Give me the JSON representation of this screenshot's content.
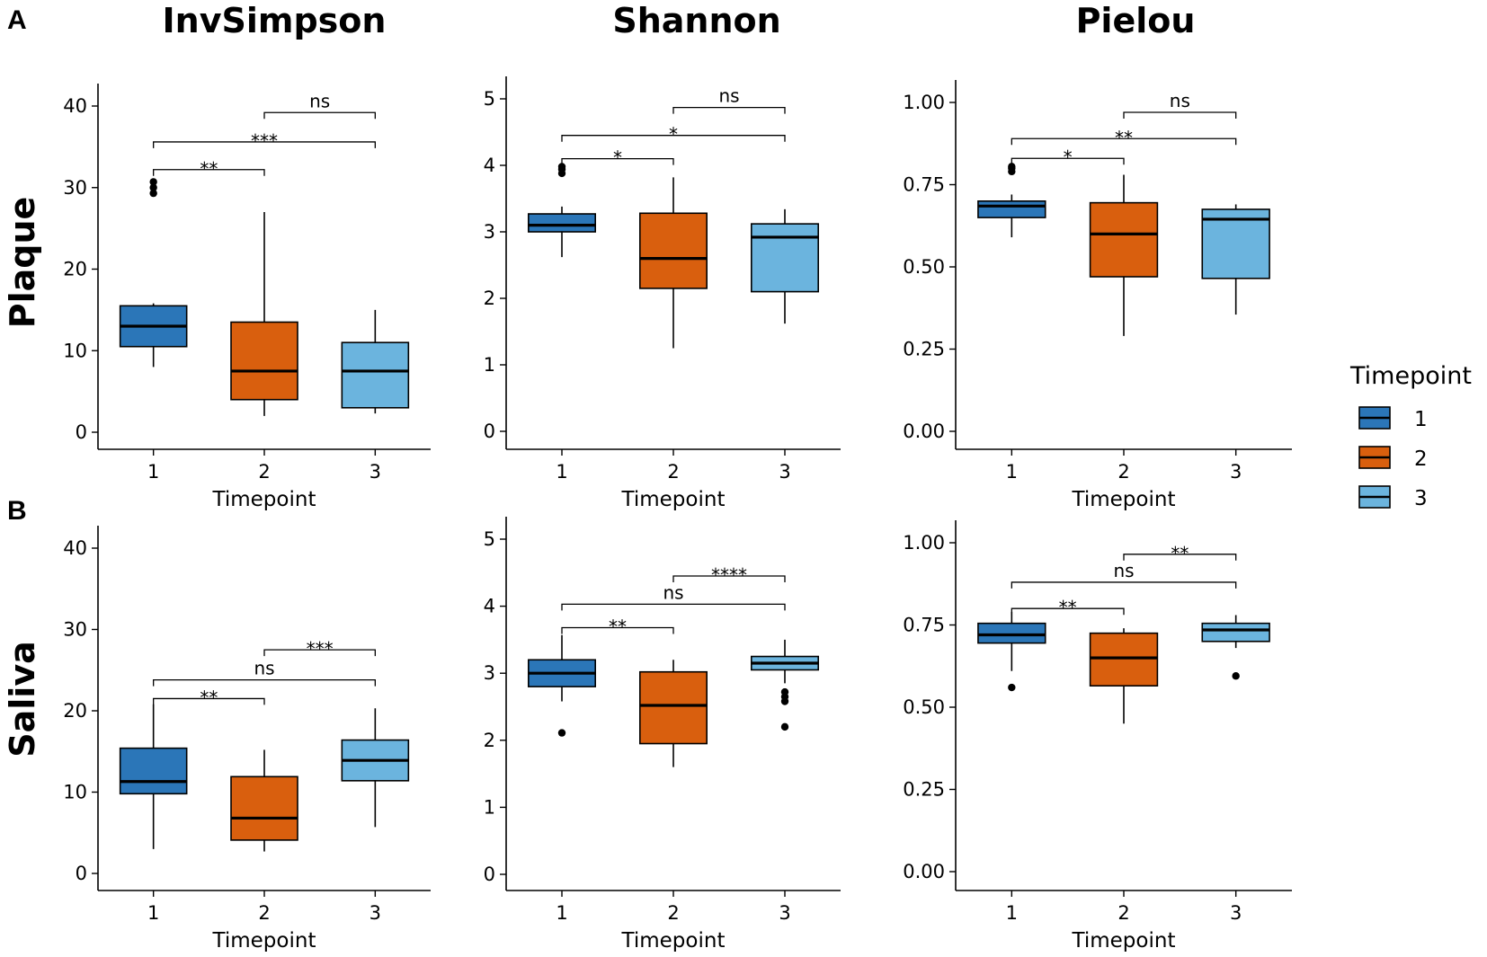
{
  "figure": {
    "panel_labels": [
      "A",
      "B"
    ],
    "column_titles": [
      "InvSimpson",
      "Shannon",
      "Pielou"
    ],
    "row_titles": [
      "Plaque",
      "Saliva"
    ]
  },
  "legend": {
    "title": "Timepoint",
    "items": [
      {
        "label": "1",
        "color": "#2B76B8"
      },
      {
        "label": "2",
        "color": "#D95F0E"
      },
      {
        "label": "3",
        "color": "#6BB4DE"
      }
    ]
  },
  "chart_data": [
    {
      "type": "box",
      "panel": "A",
      "row": "Plaque",
      "title": "InvSimpson",
      "xlabel": "Timepoint",
      "ylabel": "",
      "categories": [
        "1",
        "2",
        "3"
      ],
      "ylim": [
        0,
        40
      ],
      "yticks": [
        0,
        10,
        20,
        30,
        40
      ],
      "ytick_labels": [
        "0",
        "10",
        "20",
        "30",
        "40"
      ],
      "boxes": [
        {
          "category": "1",
          "min": 8,
          "q1": 10.5,
          "median": 13,
          "q3": 15.5,
          "max": 15.8,
          "outliers": [
            29.3,
            30,
            30.7
          ],
          "color": "#2B76B8"
        },
        {
          "category": "2",
          "min": 2,
          "q1": 4,
          "median": 7.5,
          "q3": 13.5,
          "max": 27,
          "outliers": [],
          "color": "#D95F0E"
        },
        {
          "category": "3",
          "min": 2.3,
          "q1": 3,
          "median": 7.5,
          "q3": 11,
          "max": 15,
          "outliers": [],
          "color": "#6BB4DE"
        }
      ],
      "comparisons": [
        {
          "from": "2",
          "to": "3",
          "y": 39.2,
          "label": "ns"
        },
        {
          "from": "1",
          "to": "3",
          "y": 35.6,
          "label": "***"
        },
        {
          "from": "1",
          "to": "2",
          "y": 32.2,
          "label": "**"
        }
      ]
    },
    {
      "type": "box",
      "panel": "A",
      "row": "Plaque",
      "title": "Shannon",
      "xlabel": "Timepoint",
      "ylabel": "",
      "categories": [
        "1",
        "2",
        "3"
      ],
      "ylim": [
        0,
        5
      ],
      "yticks": [
        0,
        1,
        2,
        3,
        4,
        5
      ],
      "ytick_labels": [
        "0",
        "1",
        "2",
        "3",
        "4",
        "5"
      ],
      "boxes": [
        {
          "category": "1",
          "min": 2.62,
          "q1": 3.0,
          "median": 3.1,
          "q3": 3.27,
          "max": 3.38,
          "outliers": [
            3.88,
            3.94,
            3.98
          ],
          "color": "#2B76B8"
        },
        {
          "category": "2",
          "min": 1.25,
          "q1": 2.15,
          "median": 2.6,
          "q3": 3.28,
          "max": 3.82,
          "outliers": [],
          "color": "#D95F0E"
        },
        {
          "category": "3",
          "min": 1.62,
          "q1": 2.1,
          "median": 2.92,
          "q3": 3.12,
          "max": 3.34,
          "outliers": [],
          "color": "#6BB4DE"
        }
      ],
      "comparisons": [
        {
          "from": "2",
          "to": "3",
          "y": 4.87,
          "label": "ns"
        },
        {
          "from": "1",
          "to": "3",
          "y": 4.45,
          "label": "*"
        },
        {
          "from": "1",
          "to": "2",
          "y": 4.1,
          "label": "*"
        }
      ]
    },
    {
      "type": "box",
      "panel": "A",
      "row": "Plaque",
      "title": "Pielou",
      "xlabel": "Timepoint",
      "ylabel": "",
      "categories": [
        "1",
        "2",
        "3"
      ],
      "ylim": [
        0,
        1
      ],
      "yticks": [
        0,
        0.25,
        0.5,
        0.75,
        1
      ],
      "ytick_labels": [
        "0.00",
        "0.25",
        "0.50",
        "0.75",
        "1.00"
      ],
      "boxes": [
        {
          "category": "1",
          "min": 0.59,
          "q1": 0.65,
          "median": 0.685,
          "q3": 0.7,
          "max": 0.72,
          "outliers": [
            0.79,
            0.8,
            0.805
          ],
          "color": "#2B76B8"
        },
        {
          "category": "2",
          "min": 0.29,
          "q1": 0.47,
          "median": 0.6,
          "q3": 0.695,
          "max": 0.78,
          "outliers": [],
          "color": "#D95F0E"
        },
        {
          "category": "3",
          "min": 0.355,
          "q1": 0.465,
          "median": 0.645,
          "q3": 0.675,
          "max": 0.69,
          "outliers": [],
          "color": "#6BB4DE"
        }
      ],
      "comparisons": [
        {
          "from": "2",
          "to": "3",
          "y": 0.97,
          "label": "ns"
        },
        {
          "from": "1",
          "to": "3",
          "y": 0.89,
          "label": "**"
        },
        {
          "from": "1",
          "to": "2",
          "y": 0.83,
          "label": "*"
        }
      ]
    },
    {
      "type": "box",
      "panel": "B",
      "row": "Saliva",
      "title": "InvSimpson",
      "xlabel": "Timepoint",
      "ylabel": "",
      "categories": [
        "1",
        "2",
        "3"
      ],
      "ylim": [
        0,
        40
      ],
      "yticks": [
        0,
        10,
        20,
        30,
        40
      ],
      "ytick_labels": [
        "0",
        "10",
        "20",
        "30",
        "40"
      ],
      "boxes": [
        {
          "category": "1",
          "min": 3,
          "q1": 9.8,
          "median": 11.3,
          "q3": 15.4,
          "max": 20.8,
          "outliers": [],
          "color": "#2B76B8"
        },
        {
          "category": "2",
          "min": 2.7,
          "q1": 4.1,
          "median": 6.8,
          "q3": 11.9,
          "max": 15.2,
          "outliers": [],
          "color": "#D95F0E"
        },
        {
          "category": "3",
          "min": 5.7,
          "q1": 11.4,
          "median": 13.9,
          "q3": 16.4,
          "max": 20.3,
          "outliers": [],
          "color": "#6BB4DE"
        }
      ],
      "comparisons": [
        {
          "from": "2",
          "to": "3",
          "y": 27.5,
          "label": "***"
        },
        {
          "from": "1",
          "to": "3",
          "y": 23.8,
          "label": "ns"
        },
        {
          "from": "1",
          "to": "2",
          "y": 21.5,
          "label": "**"
        }
      ]
    },
    {
      "type": "box",
      "panel": "B",
      "row": "Saliva",
      "title": "Shannon",
      "xlabel": "Timepoint",
      "ylabel": "",
      "categories": [
        "1",
        "2",
        "3"
      ],
      "ylim": [
        0,
        5
      ],
      "yticks": [
        0,
        1,
        2,
        3,
        4,
        5
      ],
      "ytick_labels": [
        "0",
        "1",
        "2",
        "3",
        "4",
        "5"
      ],
      "boxes": [
        {
          "category": "1",
          "min": 2.58,
          "q1": 2.8,
          "median": 3.0,
          "q3": 3.2,
          "max": 3.57,
          "outliers": [
            2.11
          ],
          "color": "#2B76B8"
        },
        {
          "category": "2",
          "min": 1.6,
          "q1": 1.95,
          "median": 2.52,
          "q3": 3.02,
          "max": 3.2,
          "outliers": [],
          "color": "#D95F0E"
        },
        {
          "category": "3",
          "min": 2.85,
          "q1": 3.05,
          "median": 3.15,
          "q3": 3.25,
          "max": 3.5,
          "outliers": [
            2.2,
            2.58,
            2.65,
            2.72
          ],
          "color": "#6BB4DE"
        }
      ],
      "comparisons": [
        {
          "from": "2",
          "to": "3",
          "y": 4.45,
          "label": "****"
        },
        {
          "from": "1",
          "to": "3",
          "y": 4.03,
          "label": "ns"
        },
        {
          "from": "1",
          "to": "2",
          "y": 3.68,
          "label": "**"
        }
      ]
    },
    {
      "type": "box",
      "panel": "B",
      "row": "Saliva",
      "title": "Pielou",
      "xlabel": "Timepoint",
      "ylabel": "",
      "categories": [
        "1",
        "2",
        "3"
      ],
      "ylim": [
        0,
        1
      ],
      "yticks": [
        0,
        0.25,
        0.5,
        0.75,
        1
      ],
      "ytick_labels": [
        "0.00",
        "0.25",
        "0.50",
        "0.75",
        "1.00"
      ],
      "boxes": [
        {
          "category": "1",
          "min": 0.61,
          "q1": 0.695,
          "median": 0.72,
          "q3": 0.755,
          "max": 0.79,
          "outliers": [
            0.56
          ],
          "color": "#2B76B8"
        },
        {
          "category": "2",
          "min": 0.45,
          "q1": 0.565,
          "median": 0.65,
          "q3": 0.725,
          "max": 0.74,
          "outliers": [],
          "color": "#D95F0E"
        },
        {
          "category": "3",
          "min": 0.68,
          "q1": 0.7,
          "median": 0.735,
          "q3": 0.755,
          "max": 0.78,
          "outliers": [
            0.595
          ],
          "color": "#6BB4DE"
        }
      ],
      "comparisons": [
        {
          "from": "2",
          "to": "3",
          "y": 0.965,
          "label": "**"
        },
        {
          "from": "1",
          "to": "3",
          "y": 0.88,
          "label": "ns"
        },
        {
          "from": "1",
          "to": "2",
          "y": 0.8,
          "label": "**"
        }
      ]
    }
  ]
}
